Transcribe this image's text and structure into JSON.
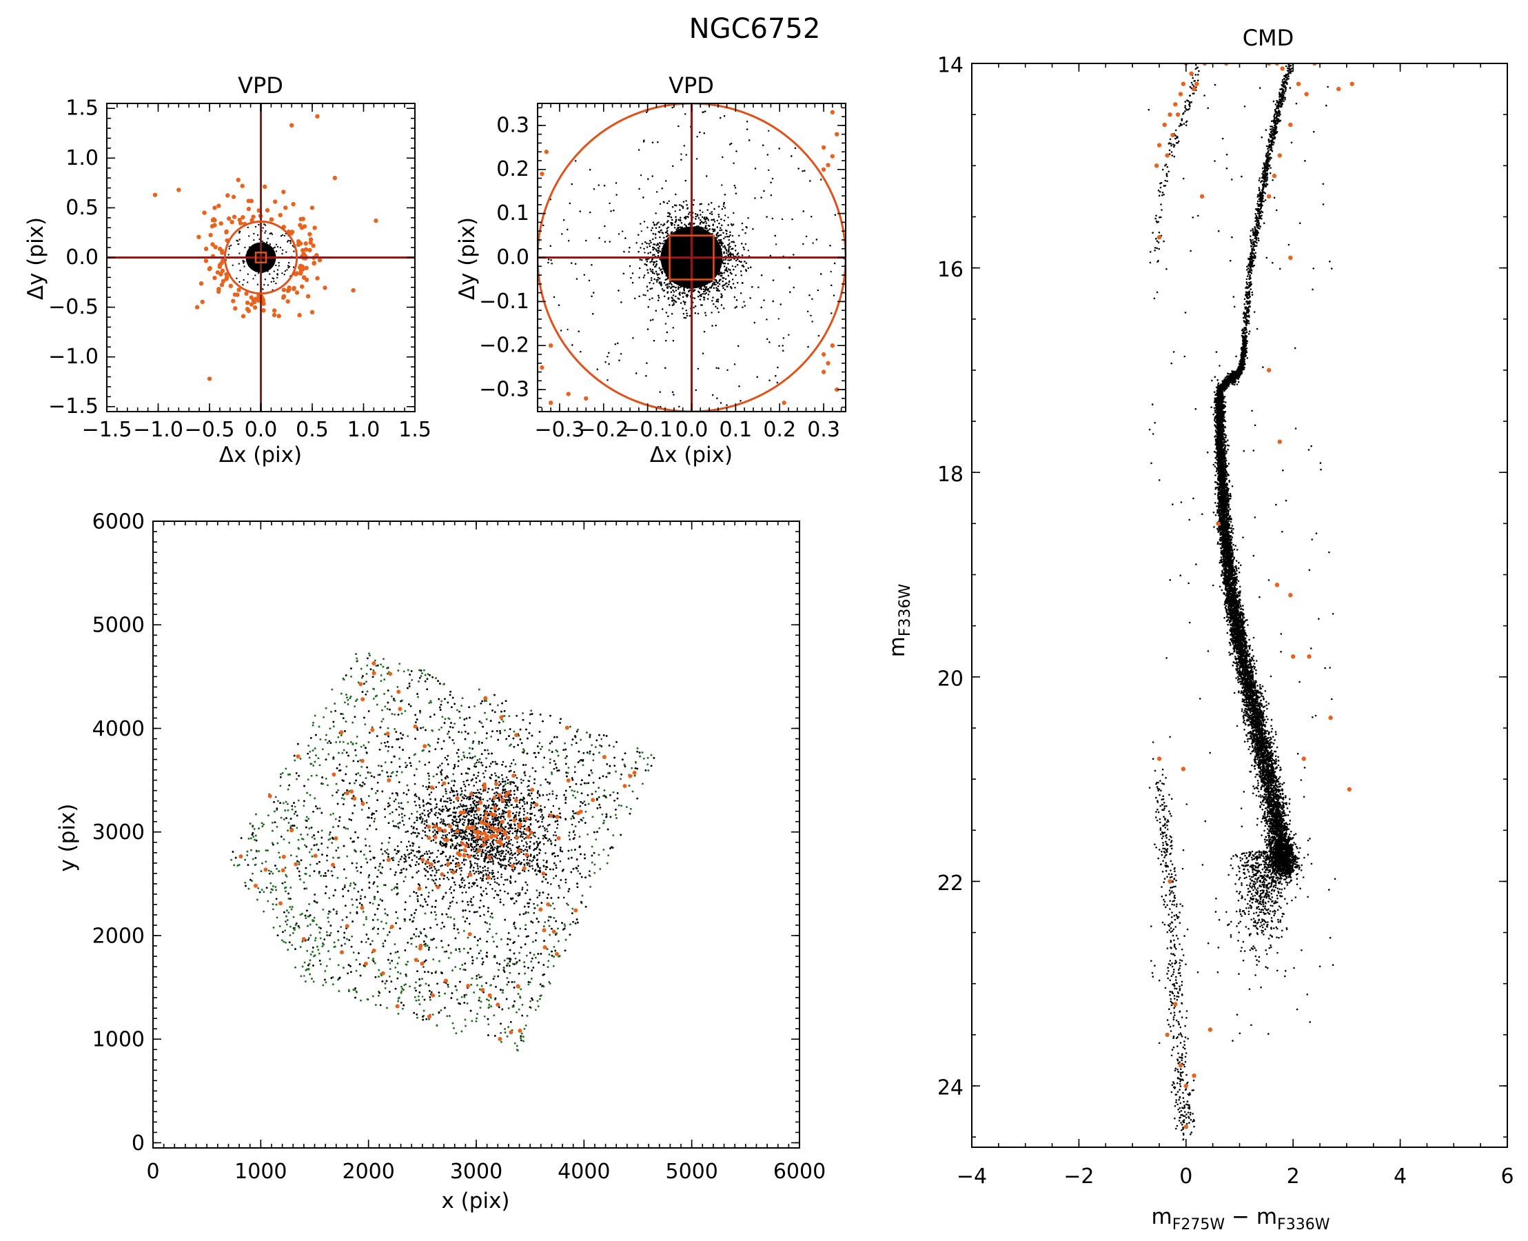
{
  "figure_title": "NGC6752",
  "colors": {
    "member": "#000000",
    "field": "#e8641e",
    "map_member": "#1f6e1f",
    "cross": "#8b1a1a",
    "selection": "#e0521c"
  },
  "chart_data": [
    {
      "id": "vpd_wide",
      "type": "scatter",
      "title": "VPD",
      "xlabel": "Δx (pix)",
      "ylabel": "Δy (pix)",
      "xlim": [
        -1.5,
        1.5
      ],
      "ylim": [
        -1.55,
        1.55
      ],
      "xticks": [
        -1.5,
        -1.0,
        -0.5,
        0.0,
        0.5,
        1.0,
        1.5
      ],
      "xtick_labels": [
        "−1.5",
        "−1.0",
        "−0.5",
        "0.0",
        "0.5",
        "1.0",
        "1.5"
      ],
      "yticks": [
        -1.5,
        -1.0,
        -0.5,
        0.0,
        0.5,
        1.0,
        1.5
      ],
      "ytick_labels": [
        "−1.5",
        "−1.0",
        "−0.5",
        "0.0",
        "0.5",
        "1.0",
        "1.5"
      ],
      "selection_radius": 0.35,
      "zoom_box_halfwidth": 0.05,
      "member_spread": 0.05,
      "field_outliers": [
        [
          -1.03,
          0.63
        ],
        [
          -0.8,
          0.68
        ],
        [
          -0.55,
          0.45
        ],
        [
          -0.45,
          0.5
        ],
        [
          0.55,
          1.42
        ],
        [
          0.3,
          1.33
        ],
        [
          0.72,
          0.8
        ],
        [
          1.12,
          0.37
        ],
        [
          0.9,
          -0.33
        ],
        [
          -0.5,
          -1.22
        ],
        [
          -0.62,
          -0.5
        ],
        [
          0.5,
          -0.55
        ],
        [
          0.5,
          0.5
        ],
        [
          -0.22,
          0.78
        ],
        [
          -0.18,
          0.72
        ],
        [
          0.22,
          0.66
        ],
        [
          0.4,
          0.3
        ],
        [
          0.42,
          -0.2
        ],
        [
          -0.42,
          -0.15
        ]
      ]
    },
    {
      "id": "vpd_zoom",
      "type": "scatter",
      "title": "VPD",
      "xlabel": "Δx (pix)",
      "ylabel": "Δy (pix)",
      "xlim": [
        -0.35,
        0.35
      ],
      "ylim": [
        -0.35,
        0.35
      ],
      "xticks": [
        -0.3,
        -0.2,
        -0.1,
        0.0,
        0.1,
        0.2,
        0.3
      ],
      "xtick_labels": [
        "−0.3",
        "−0.2",
        "−0.1",
        "0.0",
        "0.1",
        "0.2",
        "0.3"
      ],
      "yticks": [
        -0.3,
        -0.2,
        -0.1,
        0.0,
        0.1,
        0.2,
        0.3
      ],
      "ytick_labels": [
        "−0.3",
        "−0.2",
        "−0.1",
        "0.0",
        "0.1",
        "0.2",
        "0.3"
      ],
      "selection_radius": 0.35,
      "zoom_box_halfwidth": 0.05,
      "member_spread": 0.05,
      "field_outliers": [
        [
          -0.33,
          0.24
        ],
        [
          -0.34,
          0.19
        ],
        [
          -0.32,
          -0.2
        ],
        [
          -0.34,
          -0.25
        ],
        [
          -0.32,
          -0.33
        ],
        [
          -0.28,
          -0.31
        ],
        [
          -0.24,
          -0.32
        ],
        [
          0.32,
          0.33
        ],
        [
          0.33,
          0.28
        ],
        [
          0.3,
          0.25
        ],
        [
          0.32,
          0.23
        ],
        [
          0.31,
          0.21
        ],
        [
          0.3,
          0.2
        ],
        [
          0.32,
          -0.2
        ],
        [
          0.3,
          -0.22
        ],
        [
          0.31,
          -0.24
        ],
        [
          0.3,
          -0.26
        ],
        [
          0.33,
          -0.3
        ],
        [
          0.21,
          -0.33
        ]
      ]
    },
    {
      "id": "xy_map",
      "type": "scatter",
      "title": "",
      "xlabel": "x (pix)",
      "ylabel": "y (pix)",
      "xlim": [
        0,
        6000
      ],
      "ylim": [
        -50,
        6000
      ],
      "xticks": [
        0,
        1000,
        2000,
        3000,
        4000,
        5000,
        6000
      ],
      "xtick_labels": [
        "0",
        "1000",
        "2000",
        "3000",
        "4000",
        "5000",
        "6000"
      ],
      "yticks": [
        0,
        1000,
        2000,
        3000,
        4000,
        5000,
        6000
      ],
      "ytick_labels": [
        "0",
        "1000",
        "2000",
        "3000",
        "4000",
        "5000",
        "6000"
      ],
      "field_polygon": [
        [
          1900,
          4800
        ],
        [
          4700,
          3750
        ],
        [
          3380,
          850
        ],
        [
          1400,
          1550
        ],
        [
          700,
          2750
        ]
      ],
      "cluster_center": [
        3050,
        3000
      ],
      "chip_gap_line": [
        [
          1200,
          3400
        ],
        [
          3900,
          2380
        ]
      ]
    },
    {
      "id": "cmd",
      "type": "scatter",
      "title": "CMD",
      "xlabel": "m",
      "xlabel_sub1": "F275W",
      "xlabel_mid": " − m",
      "xlabel_sub2": "F336W",
      "ylabel": "m",
      "ylabel_sub": "F336W",
      "xlim": [
        -4,
        6
      ],
      "ylim": [
        24.6,
        14
      ],
      "y_inverted": true,
      "xticks": [
        -4,
        -2,
        0,
        2,
        4,
        6
      ],
      "xtick_labels": [
        "−4",
        "−2",
        "0",
        "2",
        "4",
        "6"
      ],
      "yticks": [
        14,
        16,
        18,
        20,
        22,
        24
      ],
      "ytick_labels": [
        "14",
        "16",
        "18",
        "20",
        "22",
        "24"
      ],
      "sequences": {
        "main_sequence_ridge": [
          [
            0.62,
            17.2
          ],
          [
            0.65,
            17.8
          ],
          [
            0.72,
            18.5
          ],
          [
            0.85,
            19.2
          ],
          [
            1.05,
            19.8
          ],
          [
            1.3,
            20.4
          ],
          [
            1.55,
            21.0
          ],
          [
            1.75,
            21.6
          ],
          [
            1.85,
            21.9
          ]
        ],
        "subgiant_branch": [
          [
            0.62,
            17.2
          ],
          [
            0.8,
            17.1
          ],
          [
            0.95,
            17.05
          ],
          [
            1.05,
            16.95
          ],
          [
            1.1,
            16.7
          ]
        ],
        "red_giant_branch": [
          [
            1.1,
            16.7
          ],
          [
            1.2,
            16.0
          ],
          [
            1.35,
            15.5
          ],
          [
            1.5,
            15.0
          ],
          [
            1.7,
            14.5
          ],
          [
            1.95,
            14.0
          ]
        ],
        "horizontal_branch": [
          [
            -0.55,
            15.9
          ],
          [
            -0.5,
            15.3
          ],
          [
            -0.3,
            14.9
          ],
          [
            -0.1,
            14.6
          ],
          [
            0.1,
            14.3
          ],
          [
            0.25,
            14.0
          ]
        ],
        "white_dwarf_sequence": [
          [
            -0.5,
            21.0
          ],
          [
            -0.3,
            22.0
          ],
          [
            -0.2,
            23.0
          ],
          [
            -0.1,
            24.0
          ],
          [
            0.0,
            24.4
          ]
        ]
      },
      "field_stars": [
        [
          -0.55,
          15.0
        ],
        [
          -0.5,
          14.8
        ],
        [
          -0.4,
          14.6
        ],
        [
          -0.35,
          14.9
        ],
        [
          -0.3,
          14.5
        ],
        [
          -0.25,
          14.7
        ],
        [
          -0.2,
          14.4
        ],
        [
          -0.15,
          14.5
        ],
        [
          -0.1,
          14.3
        ],
        [
          -0.05,
          14.2
        ],
        [
          0.0,
          14.0
        ],
        [
          0.1,
          14.1
        ],
        [
          0.15,
          14.25
        ],
        [
          0.2,
          14.2
        ],
        [
          0.35,
          14.0
        ],
        [
          0.75,
          14.0
        ],
        [
          1.55,
          14.0
        ],
        [
          1.7,
          14.0
        ],
        [
          1.8,
          14.05
        ],
        [
          2.1,
          14.2
        ],
        [
          2.25,
          14.3
        ],
        [
          2.4,
          14.0
        ],
        [
          2.85,
          14.25
        ],
        [
          3.1,
          14.2
        ],
        [
          1.95,
          14.6
        ],
        [
          1.75,
          14.9
        ],
        [
          1.65,
          15.1
        ],
        [
          1.55,
          15.3
        ],
        [
          -0.5,
          15.7
        ],
        [
          0.3,
          15.3
        ],
        [
          1.95,
          15.9
        ],
        [
          1.55,
          17.0
        ],
        [
          1.75,
          17.7
        ],
        [
          0.6,
          18.5
        ],
        [
          1.7,
          19.1
        ],
        [
          1.95,
          19.2
        ],
        [
          2.0,
          19.8
        ],
        [
          2.3,
          19.8
        ],
        [
          2.7,
          20.4
        ],
        [
          3.05,
          21.1
        ],
        [
          2.2,
          20.8
        ],
        [
          -0.5,
          20.8
        ],
        [
          -0.05,
          20.9
        ],
        [
          -0.3,
          22.0
        ],
        [
          -0.2,
          23.2
        ],
        [
          -0.35,
          23.5
        ],
        [
          0.45,
          23.45
        ],
        [
          -0.1,
          23.8
        ],
        [
          0.0,
          24.0
        ],
        [
          0.15,
          23.9
        ],
        [
          0.0,
          24.4
        ]
      ]
    }
  ]
}
